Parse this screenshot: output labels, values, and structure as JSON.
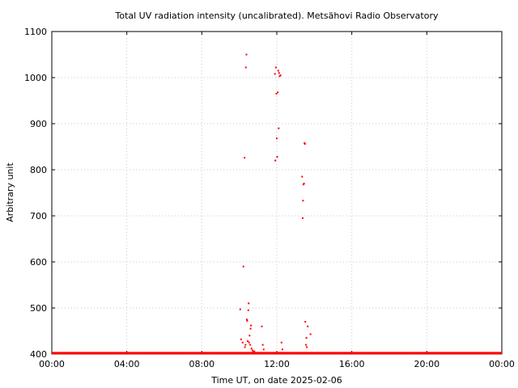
{
  "chart_data": {
    "type": "scatter",
    "title": "Total UV radiation intensity (uncalibrated). Metsähovi Radio Observatory",
    "xlabel": "Time UT, on date 2025-02-06",
    "ylabel": "Arbitrary unit",
    "xlim_hours": [
      0,
      24
    ],
    "ylim": [
      400,
      1100
    ],
    "x_tick_labels": [
      "00:00",
      "04:00",
      "08:00",
      "12:00",
      "16:00",
      "20:00",
      "00:00"
    ],
    "y_tick_labels": [
      "400",
      "500",
      "600",
      "700",
      "800",
      "900",
      "1000",
      "1100"
    ],
    "grid": true,
    "marker_color": "#ff0000",
    "baseline": {
      "value": 402,
      "x_start_hours": 0,
      "x_end_hours": 24
    },
    "series": [
      {
        "x_hours": [
          10.05,
          10.1,
          10.18,
          10.22,
          10.28,
          10.3,
          10.33,
          10.35,
          10.38,
          10.4,
          10.42,
          10.45,
          10.48,
          10.5,
          10.52,
          10.55,
          10.58,
          10.6,
          10.62,
          10.65,
          10.7,
          10.75,
          10.8,
          11.2,
          11.25,
          11.3,
          11.9,
          11.92,
          11.95,
          11.98,
          12.0,
          12.02,
          12.05,
          12.08,
          12.1,
          12.12,
          12.15,
          12.2,
          12.25,
          12.3,
          13.35,
          13.38,
          13.4,
          13.42,
          13.45,
          13.48,
          13.5,
          13.52,
          13.55,
          13.58,
          13.6,
          13.65,
          13.8
        ],
        "y": [
          497,
          432,
          425,
          590,
          826,
          415,
          420,
          1022,
          1050,
          475,
          472,
          428,
          495,
          510,
          425,
          440,
          420,
          455,
          462,
          412,
          408,
          405,
          406,
          460,
          420,
          410,
          1008,
          820,
          1022,
          965,
          868,
          828,
          968,
          1015,
          890,
          1010,
          1003,
          1005,
          425,
          410,
          785,
          695,
          733,
          768,
          770,
          858,
          856,
          470,
          420,
          435,
          415,
          460,
          443
        ]
      }
    ]
  }
}
